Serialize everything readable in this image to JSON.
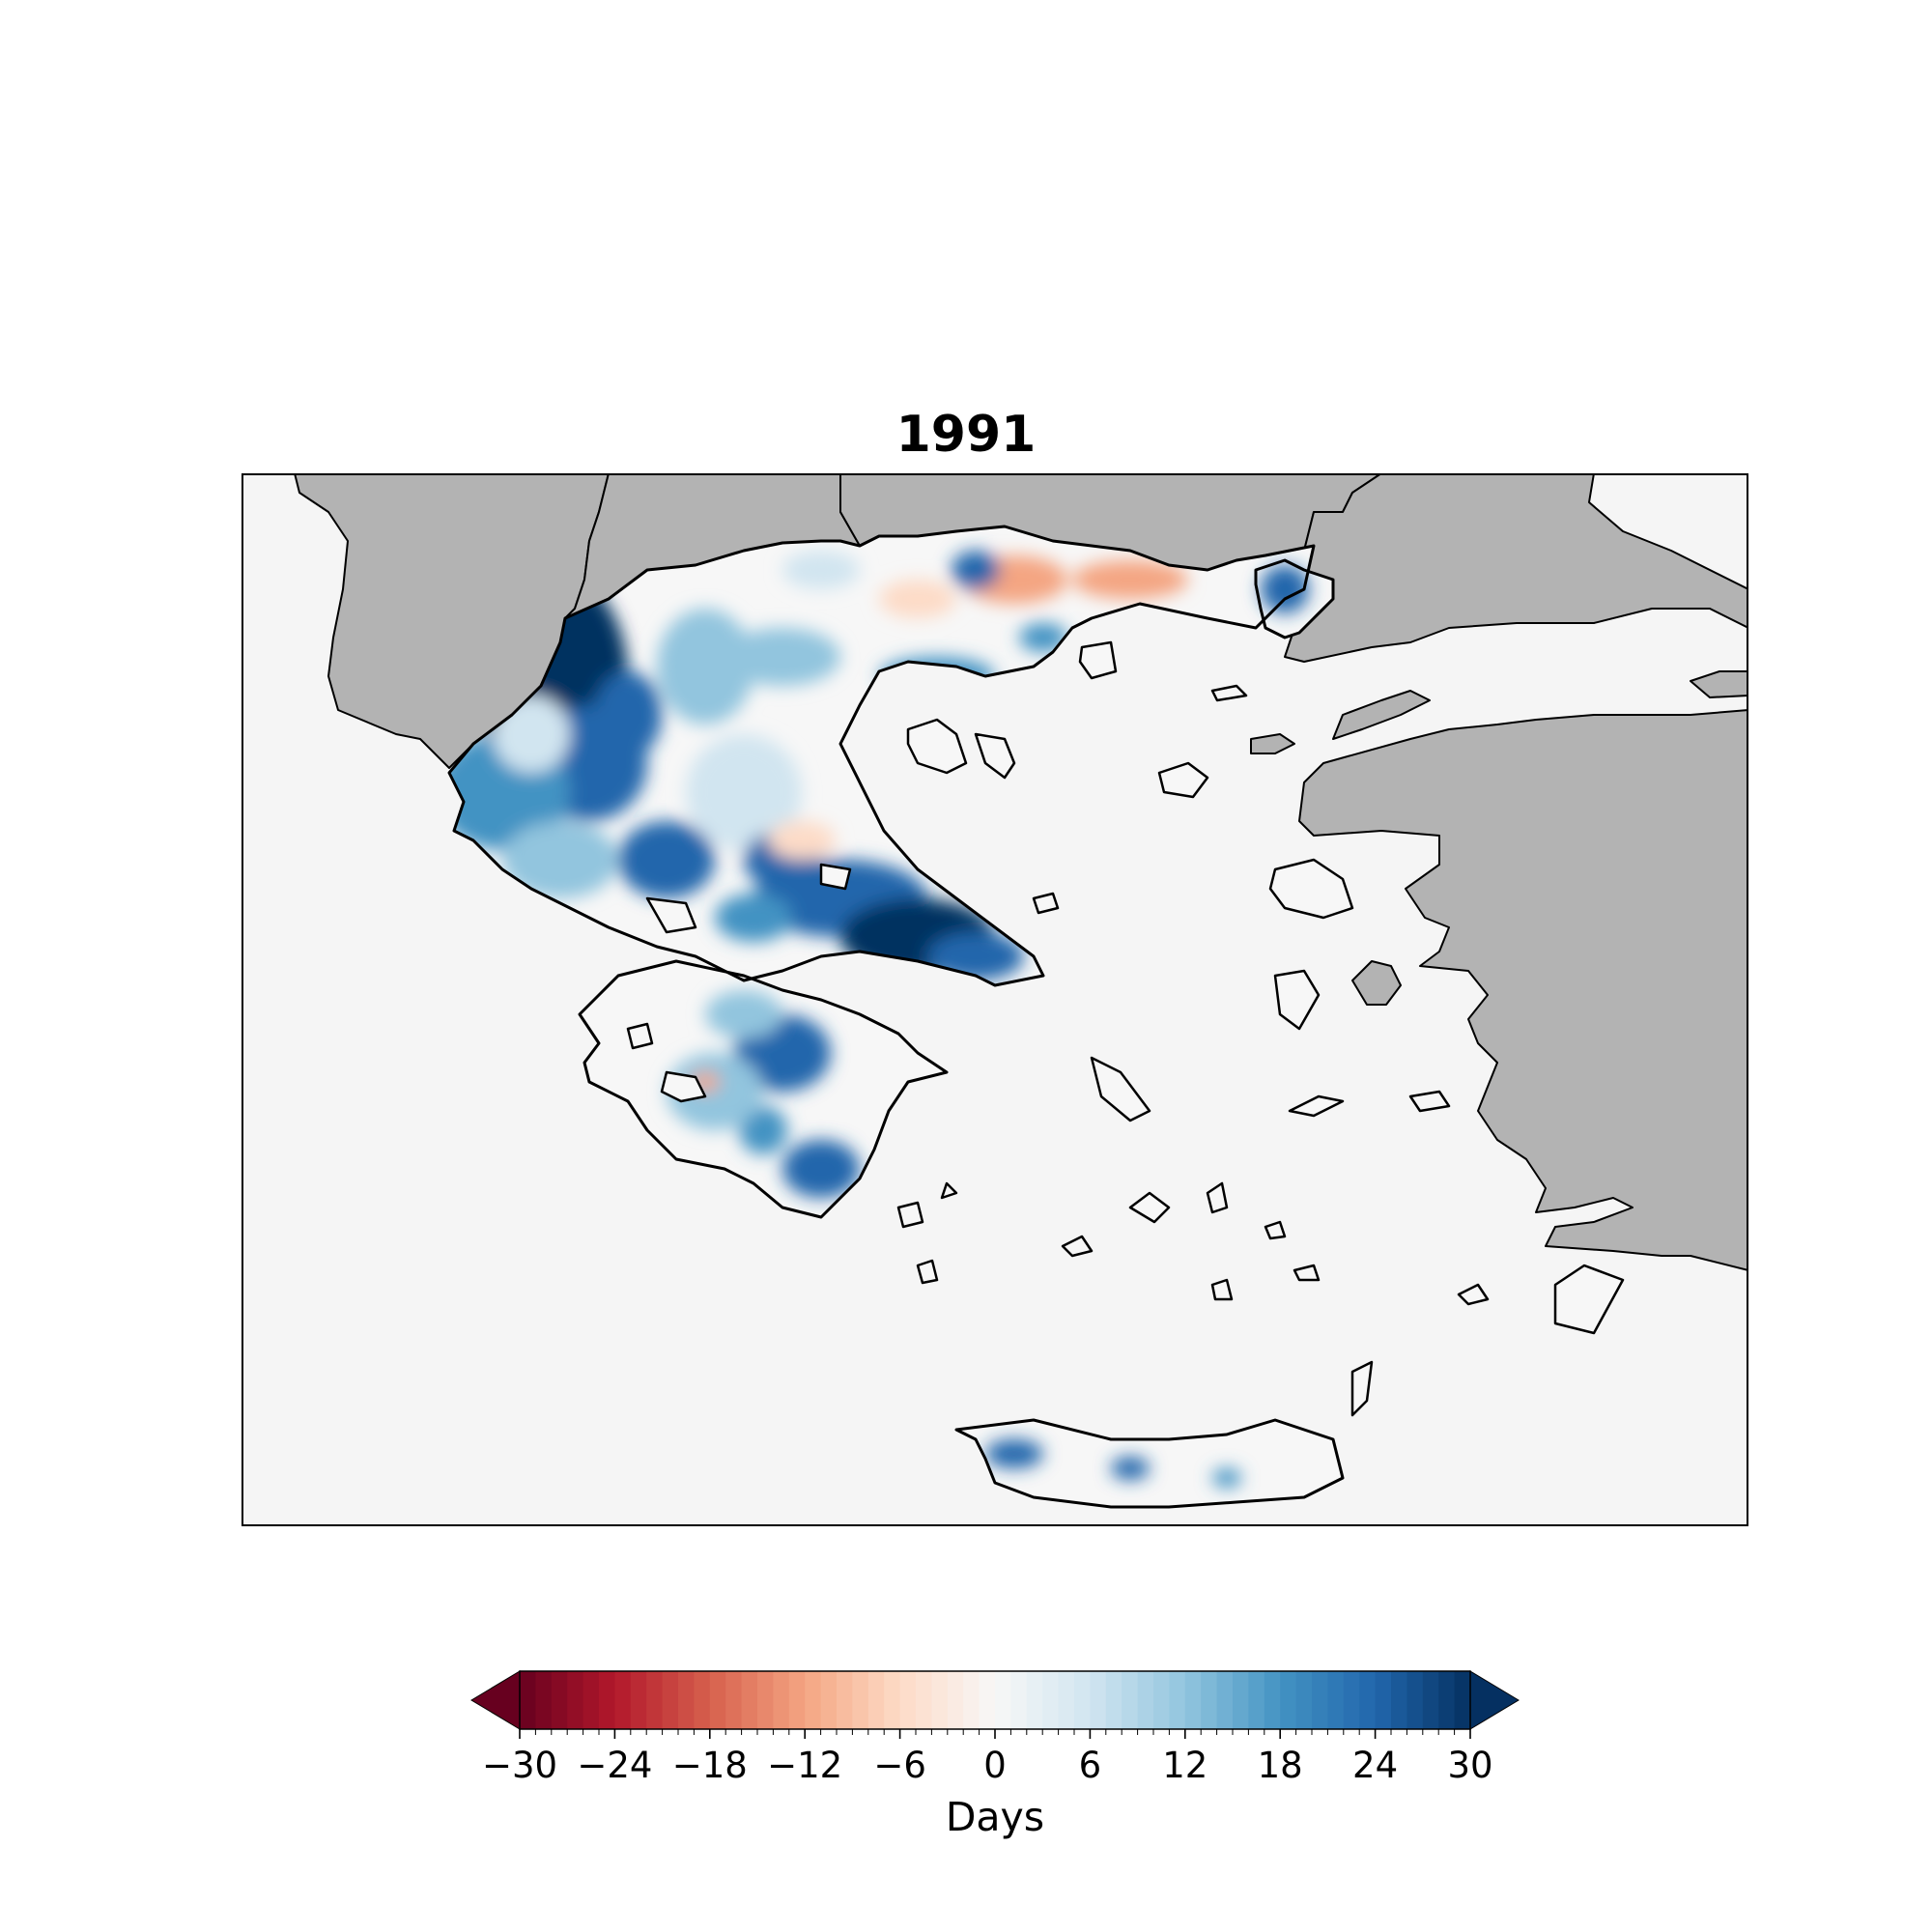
{
  "title": "1991",
  "colors": {
    "sea": "#f5f5f5",
    "foreign_land": "#b3b3b3",
    "coast": "#000000"
  },
  "colorbar": {
    "label": "Days",
    "min": -30,
    "max": 30,
    "extend": "both",
    "bins": 60,
    "ticks": [
      -30,
      -24,
      -18,
      -12,
      -6,
      0,
      6,
      12,
      18,
      24,
      30
    ],
    "tick_labels": [
      "−30",
      "−24",
      "−18",
      "−12",
      "−6",
      "0",
      "6",
      "12",
      "18",
      "24",
      "30"
    ],
    "stops": [
      {
        "v": -30,
        "c": "#67001f"
      },
      {
        "v": -24,
        "c": "#b2182b"
      },
      {
        "v": -18,
        "c": "#d6604d"
      },
      {
        "v": -12,
        "c": "#f4a582"
      },
      {
        "v": -6,
        "c": "#fddbc7"
      },
      {
        "v": 0,
        "c": "#f7f7f7"
      },
      {
        "v": 6,
        "c": "#d1e5f0"
      },
      {
        "v": 12,
        "c": "#92c5de"
      },
      {
        "v": 18,
        "c": "#4393c3"
      },
      {
        "v": 24,
        "c": "#2166ac"
      },
      {
        "v": 30,
        "c": "#053061"
      }
    ]
  }
}
